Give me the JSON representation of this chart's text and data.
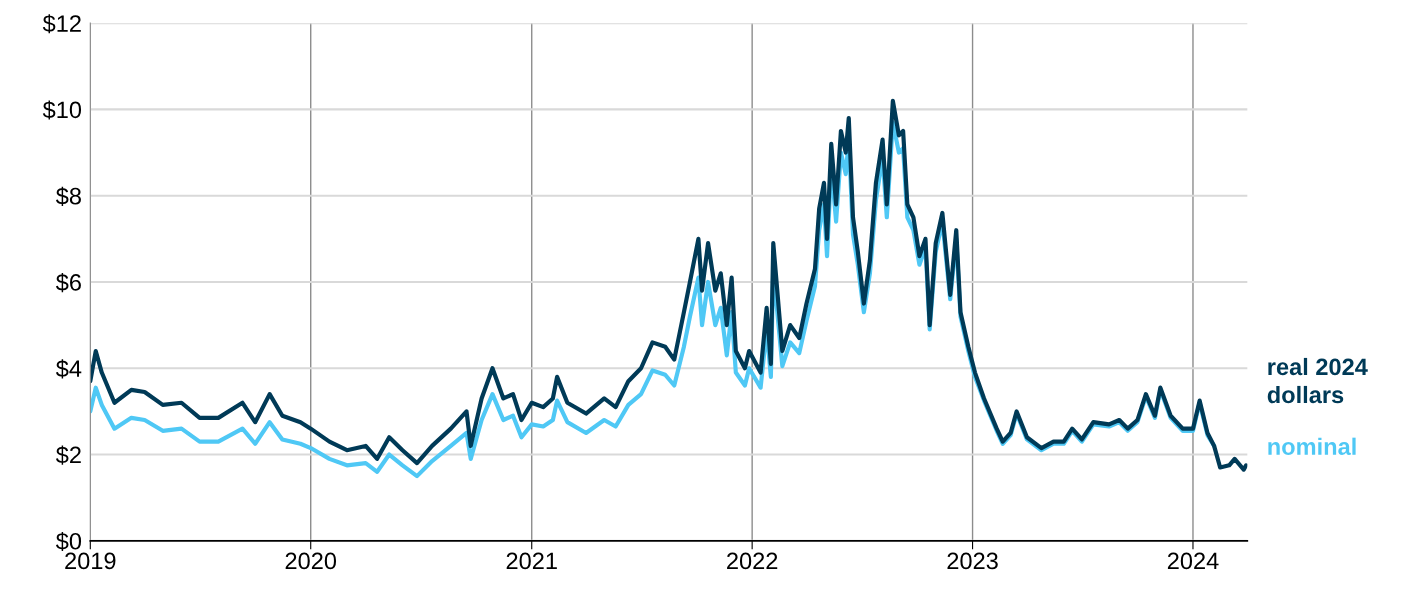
{
  "chart_data": {
    "type": "line",
    "x": [
      "2019-01-01",
      "2019-01-10",
      "2019-01-20",
      "2019-02-10",
      "2019-03-10",
      "2019-04-01",
      "2019-05-01",
      "2019-06-01",
      "2019-07-01",
      "2019-08-01",
      "2019-09-10",
      "2019-10-01",
      "2019-10-25",
      "2019-11-15",
      "2019-12-15",
      "2020-01-01",
      "2020-02-01",
      "2020-03-01",
      "2020-04-01",
      "2020-04-20",
      "2020-05-10",
      "2020-06-01",
      "2020-06-25",
      "2020-07-20",
      "2020-08-20",
      "2020-09-15",
      "2020-09-22",
      "2020-10-10",
      "2020-10-28",
      "2020-11-15",
      "2020-12-01",
      "2020-12-15",
      "2021-01-01",
      "2021-01-20",
      "2021-02-05",
      "2021-02-12",
      "2021-03-01",
      "2021-04-01",
      "2021-05-01",
      "2021-05-20",
      "2021-06-10",
      "2021-07-01",
      "2021-07-20",
      "2021-08-10",
      "2021-08-25",
      "2021-09-10",
      "2021-09-20",
      "2021-10-04",
      "2021-10-10",
      "2021-10-20",
      "2021-11-01",
      "2021-11-10",
      "2021-11-20",
      "2021-11-28",
      "2021-12-05",
      "2021-12-20",
      "2021-12-27",
      "2022-01-15",
      "2022-01-25",
      "2022-02-01",
      "2022-02-05",
      "2022-02-20",
      "2022-03-05",
      "2022-03-20",
      "2022-04-01",
      "2022-04-15",
      "2022-04-22",
      "2022-04-30",
      "2022-05-05",
      "2022-05-12",
      "2022-05-20",
      "2022-05-28",
      "2022-06-05",
      "2022-06-10",
      "2022-06-17",
      "2022-06-25",
      "2022-07-05",
      "2022-07-15",
      "2022-07-25",
      "2022-08-05",
      "2022-08-12",
      "2022-08-22",
      "2022-09-01",
      "2022-09-08",
      "2022-09-15",
      "2022-09-25",
      "2022-10-05",
      "2022-10-15",
      "2022-10-22",
      "2022-11-01",
      "2022-11-12",
      "2022-11-25",
      "2022-12-05",
      "2022-12-12",
      "2022-12-25",
      "2023-01-05",
      "2023-01-20",
      "2023-02-10",
      "2023-02-20",
      "2023-03-05",
      "2023-03-15",
      "2023-04-01",
      "2023-04-25",
      "2023-05-15",
      "2023-06-01",
      "2023-06-15",
      "2023-07-01",
      "2023-07-20",
      "2023-08-15",
      "2023-09-01",
      "2023-09-15",
      "2023-10-01",
      "2023-10-15",
      "2023-10-30",
      "2023-11-08",
      "2023-11-25",
      "2023-12-15",
      "2024-01-01",
      "2024-01-12",
      "2024-01-25",
      "2024-02-05",
      "2024-02-15",
      "2024-03-01",
      "2024-03-10",
      "2024-03-25",
      "2024-03-29"
    ],
    "series": [
      {
        "name": "nominal",
        "color": "#4fc8f5",
        "values": [
          3.0,
          3.55,
          3.15,
          2.6,
          2.85,
          2.8,
          2.55,
          2.6,
          2.3,
          2.3,
          2.6,
          2.25,
          2.75,
          2.35,
          2.25,
          2.15,
          1.9,
          1.75,
          1.8,
          1.6,
          2.0,
          1.75,
          1.5,
          1.85,
          2.2,
          2.5,
          1.9,
          2.8,
          3.4,
          2.8,
          2.9,
          2.4,
          2.7,
          2.65,
          2.8,
          3.25,
          2.75,
          2.5,
          2.8,
          2.65,
          3.15,
          3.4,
          3.95,
          3.85,
          3.6,
          4.5,
          5.2,
          6.1,
          5.0,
          6.0,
          5.0,
          5.4,
          4.3,
          5.3,
          3.9,
          3.6,
          4.0,
          3.55,
          4.9,
          3.8,
          6.3,
          4.05,
          4.6,
          4.35,
          5.1,
          5.9,
          7.2,
          7.8,
          6.6,
          8.7,
          7.4,
          9.0,
          8.5,
          9.3,
          7.1,
          6.4,
          5.3,
          6.2,
          7.9,
          8.9,
          7.5,
          9.7,
          9.0,
          9.1,
          7.5,
          7.2,
          6.4,
          6.8,
          4.9,
          6.7,
          7.4,
          5.6,
          7.0,
          5.2,
          4.4,
          3.8,
          3.25,
          2.55,
          2.25,
          2.45,
          2.95,
          2.35,
          2.1,
          2.25,
          2.25,
          2.55,
          2.3,
          2.7,
          2.65,
          2.75,
          2.55,
          2.75,
          3.35,
          2.85,
          3.5,
          2.85,
          2.55,
          2.55,
          3.2,
          2.45,
          2.2,
          null,
          null,
          null,
          null,
          null
        ]
      },
      {
        "name": "real 2024 dollars",
        "color": "#003a57",
        "values": [
          3.7,
          4.4,
          3.9,
          3.2,
          3.5,
          3.45,
          3.15,
          3.2,
          2.85,
          2.85,
          3.2,
          2.75,
          3.4,
          2.9,
          2.75,
          2.6,
          2.3,
          2.1,
          2.2,
          1.9,
          2.4,
          2.1,
          1.8,
          2.2,
          2.6,
          3.0,
          2.2,
          3.3,
          4.0,
          3.3,
          3.4,
          2.8,
          3.2,
          3.1,
          3.3,
          3.8,
          3.2,
          2.95,
          3.3,
          3.1,
          3.7,
          4.0,
          4.6,
          4.5,
          4.2,
          5.3,
          6.0,
          7.0,
          5.8,
          6.9,
          5.8,
          6.2,
          5.0,
          6.1,
          4.4,
          4.0,
          4.4,
          3.9,
          5.4,
          4.1,
          6.9,
          4.4,
          5.0,
          4.7,
          5.5,
          6.3,
          7.7,
          8.3,
          7.0,
          9.2,
          7.8,
          9.5,
          9.0,
          9.8,
          7.5,
          6.7,
          5.5,
          6.5,
          8.3,
          9.3,
          7.8,
          10.2,
          9.4,
          9.5,
          7.8,
          7.5,
          6.6,
          7.0,
          5.0,
          6.9,
          7.6,
          5.7,
          7.2,
          5.3,
          4.5,
          3.9,
          3.3,
          2.6,
          2.3,
          2.5,
          3.0,
          2.4,
          2.15,
          2.3,
          2.3,
          2.6,
          2.35,
          2.75,
          2.7,
          2.8,
          2.6,
          2.8,
          3.4,
          2.9,
          3.55,
          2.9,
          2.6,
          2.6,
          3.25,
          2.5,
          2.2,
          1.7,
          1.75,
          1.9,
          1.65,
          1.75
        ]
      }
    ],
    "xlim": [
      "2019-01-01",
      "2024-03-31"
    ],
    "xticks": [
      {
        "value": "2019-01-01",
        "label": "2019"
      },
      {
        "value": "2020-01-01",
        "label": "2020"
      },
      {
        "value": "2021-01-01",
        "label": "2021"
      },
      {
        "value": "2022-01-01",
        "label": "2022"
      },
      {
        "value": "2023-01-01",
        "label": "2023"
      },
      {
        "value": "2024-01-01",
        "label": "2024"
      }
    ],
    "ylim": [
      0,
      12
    ],
    "yticks": [
      {
        "value": 0,
        "label": "$0"
      },
      {
        "value": 2,
        "label": "$2"
      },
      {
        "value": 4,
        "label": "$4"
      },
      {
        "value": 6,
        "label": "$6"
      },
      {
        "value": 8,
        "label": "$8"
      },
      {
        "value": 10,
        "label": "$10"
      },
      {
        "value": 12,
        "label": "$12"
      }
    ],
    "grid": true,
    "legend": false,
    "marker": "none",
    "line_style": "solid"
  }
}
